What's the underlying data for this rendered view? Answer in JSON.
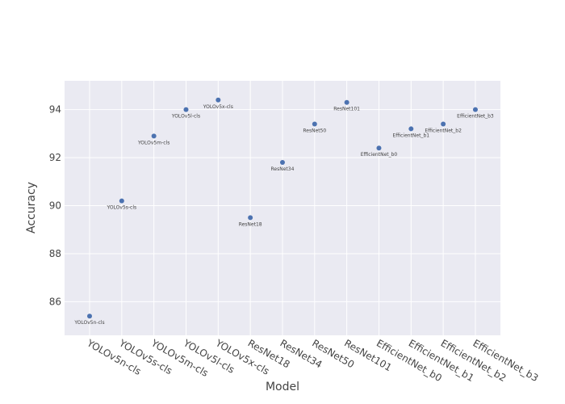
{
  "chart_data": {
    "type": "scatter",
    "title": "",
    "xlabel": "Model",
    "ylabel": "Accuracy",
    "ylim": [
      84.6,
      95.2
    ],
    "yticks": [
      86,
      88,
      90,
      92,
      94
    ],
    "grid": true,
    "categories": [
      "YOLOv5n-cls",
      "YOLOv5s-cls",
      "YOLOv5m-cls",
      "YOLOv5l-cls",
      "YOLOv5x-cls",
      "ResNet18",
      "ResNet34",
      "ResNet50",
      "ResNet101",
      "EfficientNet_b0",
      "EfficientNet_b1",
      "EfficientNet_b2",
      "EfficientNet_b3"
    ],
    "values": [
      85.4,
      90.2,
      92.9,
      94.0,
      94.4,
      89.5,
      91.8,
      93.4,
      94.3,
      92.4,
      93.2,
      93.4,
      94.0
    ],
    "point_labels": [
      "YOLOv5n-cls",
      "YOLOv5s-cls",
      "YOLOv5m-cls",
      "YOLOv5l-cls",
      "YOLOv5x-cls",
      "ResNet18",
      "ResNet34",
      "ResNet50",
      "ResNet101",
      "EfficientNet_b0",
      "EfficientNet_b1",
      "EfficientNet_b2",
      "EfficientNet_b3"
    ],
    "colors": {
      "marker": "#4c72b0",
      "plot_bg": "#eaeaf2",
      "grid": "#ffffff"
    }
  }
}
